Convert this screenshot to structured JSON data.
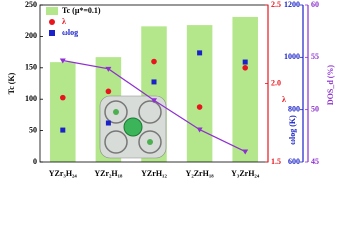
{
  "chart_data": {
    "type": "bar",
    "categories": [
      "YZr₃H₂₄",
      "YZr₂H₁₈",
      "YZrH₁₂",
      "Y₂ZrH₁₈",
      "Y₃ZrH₂₄"
    ],
    "ylabel": "Tc (K)",
    "y2label": "λ",
    "y3label": "ωlog (K)",
    "y4label": "DOS_d (%)",
    "ylim": [
      0,
      250
    ],
    "yticks": [
      0,
      50,
      100,
      150,
      200,
      250
    ],
    "y2lim": [
      1.5,
      2.5
    ],
    "y2ticks": [
      1.5,
      {
        "value": 2,
        "label": "2.0"
      },
      2.5
    ],
    "y3lim": [
      600,
      1200
    ],
    "y3ticks": [
      600,
      800,
      1000,
      1200
    ],
    "y4lim": [
      45,
      60
    ],
    "y4ticks": [
      45,
      50,
      55,
      60
    ],
    "series": [
      {
        "name": "Tc (μ*=0.1)",
        "type": "bar",
        "axis": "y",
        "color": "#b4e68c",
        "values": [
          159,
          167,
          216,
          218,
          231
        ]
      },
      {
        "name": "λ",
        "type": "scatter",
        "marker": "circle",
        "axis": "y2",
        "color": "#e8141e",
        "values": [
          1.91,
          1.95,
          2.14,
          1.85,
          2.1
        ]
      },
      {
        "name": "ωlog",
        "type": "scatter",
        "marker": "square",
        "axis": "y3",
        "color": "#1a22c8",
        "values": [
          722,
          749,
          906,
          1017,
          982
        ]
      },
      {
        "type": "line",
        "axis": "y4",
        "color": "#8e2fd0",
        "values": [
          54.7,
          53.9,
          50.9,
          48.1,
          46.0
        ]
      }
    ]
  }
}
